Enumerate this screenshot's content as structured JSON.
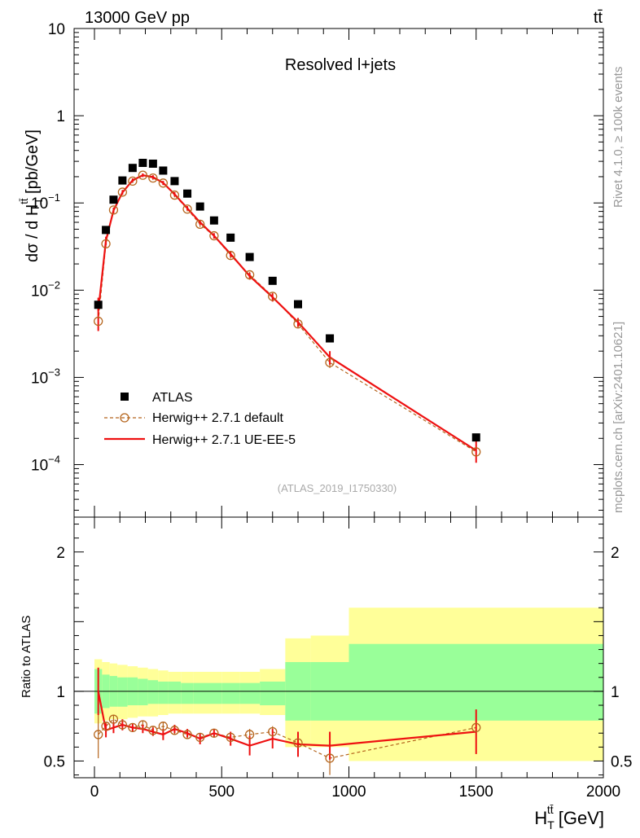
{
  "header": {
    "energy_label": "13000 GeV pp",
    "process_label": "tt̄",
    "side_rivet": "Rivet 4.1.0, ≥ 100k events",
    "side_mcplots": "mcplots.cern.ch [arXiv:2401.10621]"
  },
  "chart_data": [
    {
      "type": "scatter",
      "panel": "main",
      "title": "Resolved l+jets",
      "ylabel": "dσ / d H_T^tt̄ [pb/GeV]",
      "yscale": "log",
      "xlim": [
        -80,
        2000
      ],
      "ylim": [
        2.5e-05,
        10
      ],
      "analysis_id": "(ATLAS_2019_I1750330)",
      "y_ticks": [
        {
          "value": 10,
          "label": "10"
        },
        {
          "value": 1,
          "label": "1"
        },
        {
          "value": 0.1,
          "label": "10",
          "exp": "−1"
        },
        {
          "value": 0.01,
          "label": "10",
          "exp": "−2"
        },
        {
          "value": 0.001,
          "label": "10",
          "exp": "−3"
        },
        {
          "value": 0.0001,
          "label": "10",
          "exp": "−4"
        }
      ],
      "x": [
        15,
        45,
        75,
        110,
        150,
        190,
        230,
        270,
        315,
        365,
        415,
        470,
        535,
        610,
        700,
        800,
        925,
        1500
      ],
      "series": [
        {
          "name": "ATLAS",
          "color": "#000000",
          "values": [
            0.0068,
            0.049,
            0.109,
            0.181,
            0.252,
            0.288,
            0.282,
            0.235,
            0.178,
            0.128,
            0.091,
            0.063,
            0.04,
            0.024,
            0.0128,
            0.0069,
            0.0028,
            0.000205
          ]
        },
        {
          "name": "Herwig++ 2.7.1 default",
          "color": "#b5651d",
          "values": [
            0.0044,
            0.034,
            0.083,
            0.133,
            0.178,
            0.208,
            0.193,
            0.169,
            0.123,
            0.085,
            0.057,
            0.042,
            0.025,
            0.015,
            0.0085,
            0.0041,
            0.00148,
            0.00014
          ],
          "errors": [
            0.001,
            0.003,
            0.006,
            0.008,
            0.009,
            0.01,
            0.01,
            0.009,
            0.007,
            0.005,
            0.004,
            0.003,
            0.002,
            0.0012,
            0.0008,
            0.0004,
            0.0002,
            3e-05
          ]
        },
        {
          "name": "Herwig++ 2.7.1 UE-EE-5",
          "color": "#ee1111",
          "values": [
            0.0058,
            0.037,
            0.082,
            0.132,
            0.182,
            0.208,
            0.198,
            0.17,
            0.126,
            0.087,
            0.06,
            0.042,
            0.026,
            0.0145,
            0.0083,
            0.0043,
            0.0017,
            0.000145
          ],
          "errors": [
            0.0024,
            0.004,
            0.006,
            0.008,
            0.009,
            0.01,
            0.01,
            0.009,
            0.007,
            0.005,
            0.004,
            0.003,
            0.002,
            0.0013,
            0.0009,
            0.0005,
            0.0003,
            4e-05
          ]
        }
      ]
    },
    {
      "type": "line",
      "panel": "ratio",
      "ylabel": "Ratio to ATLAS",
      "xlabel": "H_T^tt̄ [GeV]",
      "xlim": [
        -80,
        2000
      ],
      "ylim": [
        0.38,
        2.25
      ],
      "y_ticks": [
        0.5,
        1,
        2
      ],
      "x_ticks": [
        0,
        500,
        1000,
        1500,
        2000
      ],
      "bands": {
        "edges": [
          0,
          30,
          60,
          90,
          130,
          170,
          210,
          250,
          290,
          340,
          390,
          440,
          500,
          570,
          650,
          750,
          850,
          1000,
          2000
        ],
        "green_lo": [
          0.84,
          0.88,
          0.89,
          0.89,
          0.9,
          0.9,
          0.91,
          0.91,
          0.91,
          0.91,
          0.91,
          0.91,
          0.91,
          0.91,
          0.9,
          0.79,
          0.79,
          0.79
        ],
        "green_hi": [
          1.16,
          1.12,
          1.11,
          1.1,
          1.1,
          1.09,
          1.08,
          1.07,
          1.07,
          1.06,
          1.06,
          1.06,
          1.06,
          1.06,
          1.07,
          1.21,
          1.21,
          1.34
        ],
        "yellow_lo": [
          0.77,
          0.79,
          0.8,
          0.8,
          0.81,
          0.82,
          0.82,
          0.83,
          0.84,
          0.84,
          0.84,
          0.84,
          0.84,
          0.84,
          0.83,
          0.6,
          0.6,
          0.5
        ],
        "yellow_hi": [
          1.23,
          1.21,
          1.2,
          1.19,
          1.18,
          1.17,
          1.16,
          1.15,
          1.14,
          1.14,
          1.14,
          1.14,
          1.14,
          1.14,
          1.16,
          1.38,
          1.4,
          1.6
        ]
      },
      "x": [
        15,
        45,
        75,
        110,
        150,
        190,
        230,
        270,
        315,
        365,
        415,
        470,
        535,
        610,
        700,
        800,
        925,
        1500
      ],
      "series": [
        {
          "name": "Herwig++ 2.7.1 default",
          "color": "#b5651d",
          "values": [
            0.69,
            0.75,
            0.8,
            0.76,
            0.74,
            0.76,
            0.72,
            0.75,
            0.72,
            0.69,
            0.67,
            0.7,
            0.67,
            0.69,
            0.71,
            0.63,
            0.52,
            0.74
          ],
          "errors": [
            0.17,
            0.03,
            0.03,
            0.03,
            0.03,
            0.03,
            0.03,
            0.03,
            0.03,
            0.03,
            0.03,
            0.03,
            0.03,
            0.04,
            0.04,
            0.04,
            0.12,
            0.13
          ]
        },
        {
          "name": "Herwig++ 2.7.1 UE-EE-5",
          "color": "#ee1111",
          "values": [
            1.0,
            0.72,
            0.74,
            0.76,
            0.74,
            0.73,
            0.71,
            0.69,
            0.73,
            0.7,
            0.66,
            0.7,
            0.66,
            0.61,
            0.66,
            0.62,
            0.61,
            0.71
          ],
          "errors": [
            0.17,
            0.05,
            0.04,
            0.04,
            0.03,
            0.03,
            0.03,
            0.04,
            0.03,
            0.03,
            0.04,
            0.03,
            0.05,
            0.07,
            0.07,
            0.09,
            0.1,
            0.16
          ]
        }
      ]
    }
  ]
}
